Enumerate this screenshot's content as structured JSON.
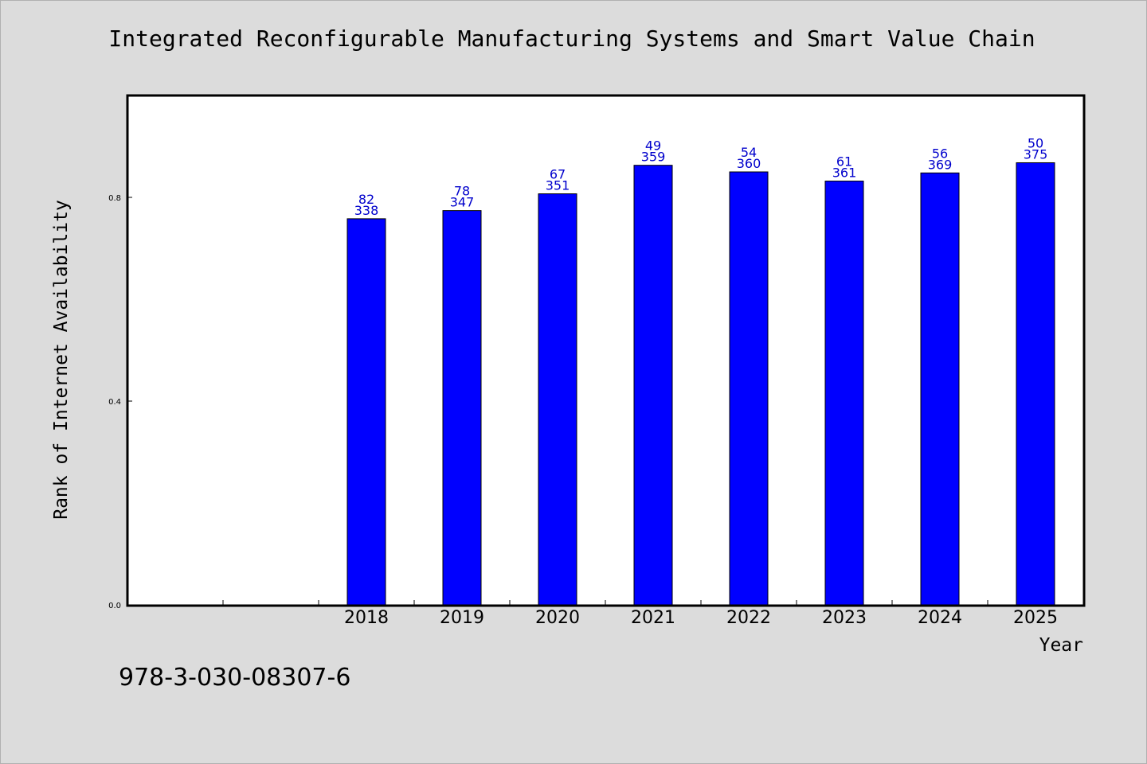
{
  "chart_data": {
    "type": "bar",
    "title": "Integrated Reconfigurable Manufacturing Systems and Smart Value Chain",
    "xlabel": "Year",
    "ylabel": "Rank of Internet Availability",
    "categories": [
      "",
      "",
      "2018",
      "2019",
      "2020",
      "2021",
      "2022",
      "2023",
      "2024",
      "2025"
    ],
    "values": [
      null,
      null,
      0.758,
      0.774,
      0.807,
      0.863,
      0.85,
      0.832,
      0.848,
      0.868
    ],
    "labels_top": [
      "",
      "",
      "82",
      "78",
      "67",
      "49",
      "54",
      "61",
      "56",
      "50"
    ],
    "labels_bottom": [
      "",
      "",
      "338",
      "347",
      "351",
      "359",
      "360",
      "361",
      "369",
      "375"
    ],
    "ylim": [
      0,
      1.0
    ],
    "yticks": [
      0.0,
      0.4,
      0.8
    ],
    "ytick_labels": [
      "0.0",
      "0.4",
      "0.8"
    ],
    "grid": false,
    "bar_color": "#0000ff",
    "label_color": "#0000cc"
  },
  "footer": {
    "isbn": "978-3-030-08307-6"
  }
}
